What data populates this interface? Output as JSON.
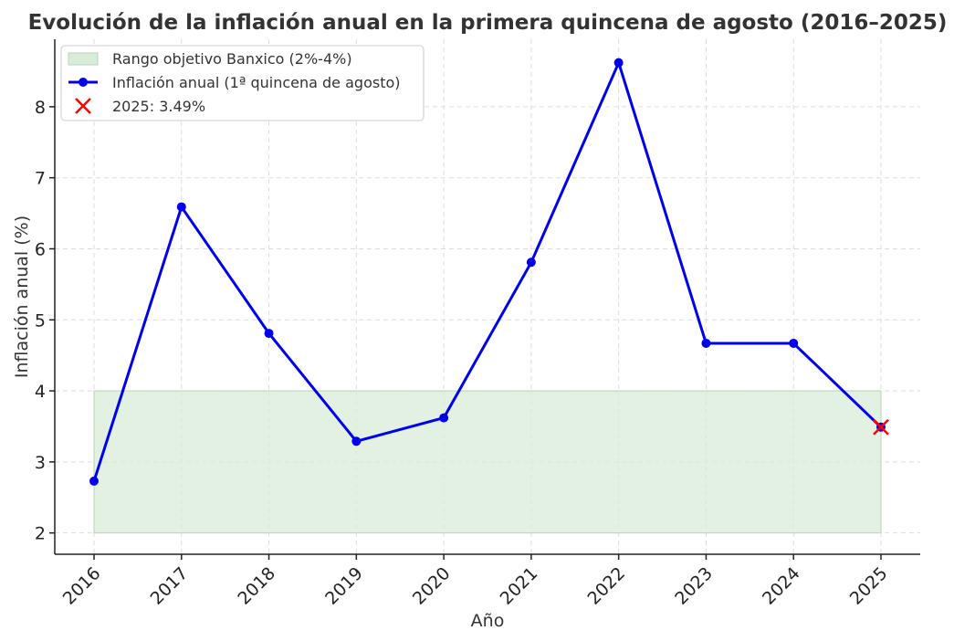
{
  "chart_data": {
    "type": "line",
    "title": "Evolución de la inflación anual en la primera quincena de agosto (2016–2025)",
    "xlabel": "Año",
    "ylabel": "Inflación anual (%)",
    "categories": [
      "2016",
      "2017",
      "2018",
      "2019",
      "2020",
      "2021",
      "2022",
      "2023",
      "2024",
      "2025"
    ],
    "series": [
      {
        "name": "Inflación anual (1ª quincena de agosto)",
        "color": "#0000ee",
        "values": [
          2.73,
          6.59,
          4.81,
          3.29,
          3.62,
          5.81,
          8.62,
          4.67,
          4.67,
          3.49
        ]
      }
    ],
    "band": {
      "name": "Rango objetivo Banxico (2%-4%)",
      "low": 2,
      "high": 4,
      "color": "#d9ecd9"
    },
    "highlight": {
      "name": "2025: 3.49%",
      "category": "2025",
      "value": 3.49,
      "color": "#ff0000"
    },
    "ylim": [
      1.7,
      8.95
    ],
    "yticks": [
      2,
      3,
      4,
      5,
      6,
      7,
      8
    ],
    "grid": true,
    "legend_position": "top-left"
  }
}
